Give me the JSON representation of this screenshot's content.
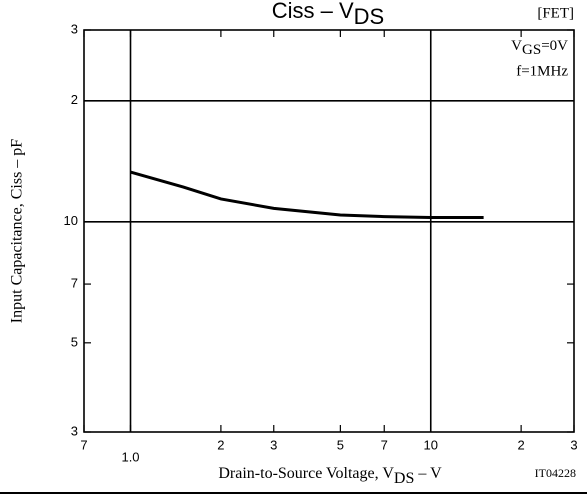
{
  "chart_data": {
    "type": "line",
    "title": {
      "main": "Ciss  –  V",
      "sub": "DS"
    },
    "tag": "[FET]",
    "annotations": [
      {
        "main": "V",
        "sub": "GS",
        "rest": "=0V"
      },
      {
        "main": "f=1MHz"
      }
    ],
    "xlabel": {
      "main": "Drain-to-Source Voltage, V",
      "sub": "DS",
      "rest": "  –  V"
    },
    "ylabel": "Input Capacitance, Ciss  –  pF",
    "code": "IT04228",
    "xlog": true,
    "ylog": true,
    "xlim": [
      0.7,
      30
    ],
    "ylim": [
      3,
      30
    ],
    "xticks": [
      {
        "value": 0.7,
        "label": "7"
      },
      {
        "value": 1,
        "label": "1.0"
      },
      2,
      3,
      5,
      7,
      10,
      {
        "value": 20,
        "label": "2"
      },
      {
        "value": 30,
        "label": "3"
      }
    ],
    "yticks": [
      3,
      5,
      7,
      10,
      {
        "value": 20,
        "label": "2"
      },
      {
        "value": 30,
        "label": "3"
      }
    ],
    "xgrid": [
      1,
      10
    ],
    "ygrid": [
      10,
      20
    ],
    "series": [
      {
        "color": "#000000",
        "x": [
          1,
          1.5,
          2,
          3,
          5,
          7,
          10,
          15
        ],
        "values": [
          13.3,
          12.2,
          11.4,
          10.8,
          10.4,
          10.3,
          10.25,
          10.25
        ]
      }
    ]
  }
}
